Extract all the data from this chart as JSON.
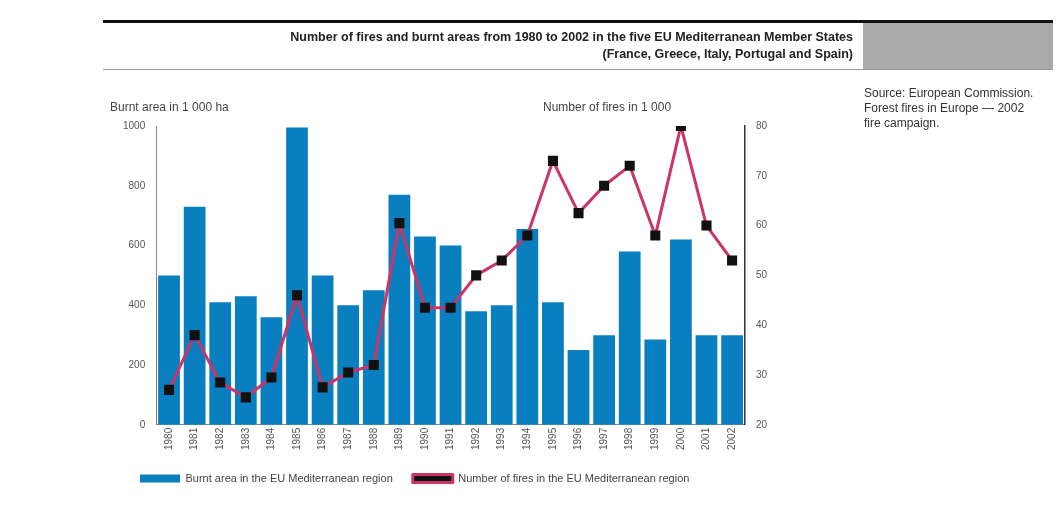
{
  "chart_data": {
    "type": "bar",
    "title": "Number of fires and burnt areas from 1980 to 2002 in the five EU Mediterranean Member States",
    "subtitle": "(France, Greece, Italy, Portugal and Spain)",
    "ylabel": "Burnt area in 1 000 ha",
    "y2label": "Number of fires in 1 000",
    "annotations": [
      "Source: European Commission. Forest fires in Europe — 2002 fire campaign."
    ],
    "categories": [
      "1980",
      "1981",
      "1982",
      "1983",
      "1984",
      "1985",
      "1986",
      "1987",
      "1988",
      "1989",
      "1990",
      "1991",
      "1992",
      "1993",
      "1994",
      "1995",
      "1996",
      "1997",
      "1998",
      "1999",
      "2000",
      "2001",
      "2002"
    ],
    "series": [
      {
        "name": "Burnt area in the EU Mediterranean region",
        "color": "#0a7fc0",
        "values": [
          500,
          730,
          410,
          430,
          360,
          995,
          500,
          400,
          450,
          770,
          630,
          600,
          380,
          400,
          655,
          410,
          250,
          300,
          580,
          285,
          620,
          300,
          300
        ]
      },
      {
        "name": "Number of fires in the EU Mediterranean region",
        "type": "line",
        "axis": "y2",
        "color": "#cc3366",
        "marker": "square",
        "values": [
          27,
          38,
          28.5,
          25.5,
          29.5,
          46,
          27.5,
          30.5,
          32,
          60.5,
          43.5,
          43.5,
          50,
          53,
          58,
          73,
          62.5,
          68,
          72,
          58,
          80,
          60,
          53
        ]
      }
    ],
    "ylim": [
      0,
      1000
    ],
    "yticks": [
      0,
      200,
      400,
      600,
      800,
      1000
    ],
    "y2lim": [
      20,
      80
    ],
    "y2ticks": [
      20,
      30,
      40,
      50,
      60,
      70,
      80
    ],
    "grid": false,
    "legend": "bottom"
  }
}
